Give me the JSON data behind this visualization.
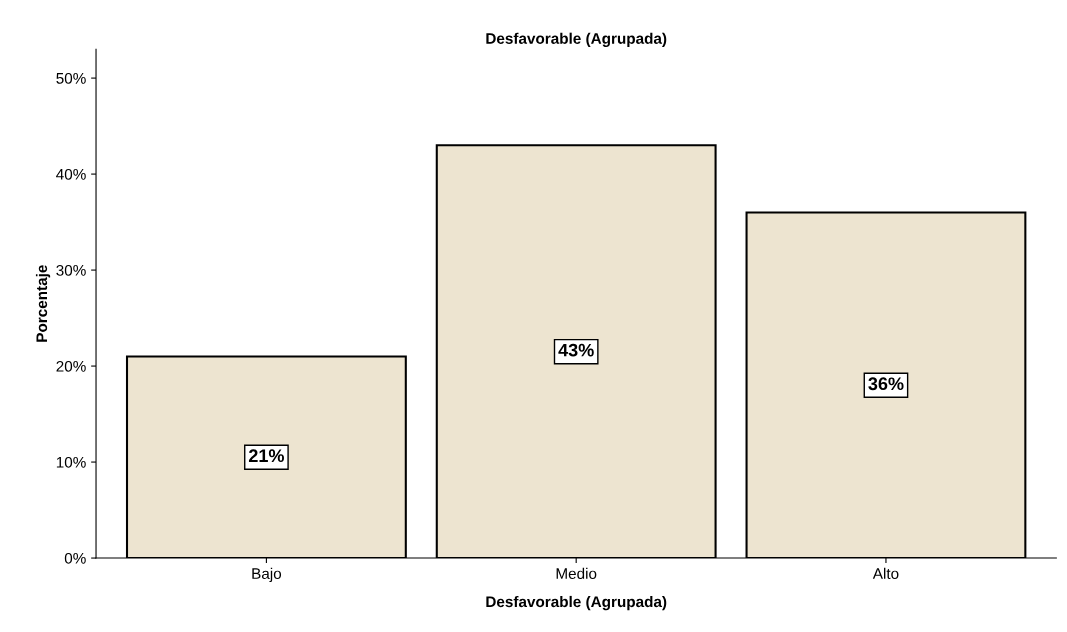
{
  "chart_data": {
    "type": "bar",
    "title": "Desfavorable (Agrupada)",
    "xlabel": "Desfavorable (Agrupada)",
    "ylabel": "Porcentaje",
    "categories": [
      "Bajo",
      "Medio",
      "Alto"
    ],
    "values": [
      21,
      43,
      36
    ],
    "value_labels": [
      "21%",
      "43%",
      "36%"
    ],
    "color": "#ede4d0",
    "ylim": [
      0,
      53
    ],
    "yticks": [
      {
        "value": 0,
        "label": "0%"
      },
      {
        "value": 10,
        "label": "10%"
      },
      {
        "value": 20,
        "label": "20%"
      },
      {
        "value": 30,
        "label": "30%"
      },
      {
        "value": 40,
        "label": "40%"
      },
      {
        "value": 50,
        "label": "50%"
      }
    ],
    "grid": false,
    "legend": false
  }
}
